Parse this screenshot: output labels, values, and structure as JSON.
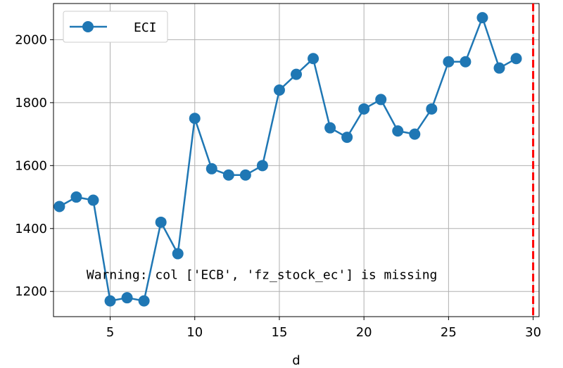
{
  "chart_data": {
    "type": "line",
    "xlabel": "d",
    "ylabel": "",
    "xlim": [
      1.65,
      30.35
    ],
    "ylim": [
      1120,
      2115
    ],
    "x_ticks": [
      5,
      10,
      15,
      20,
      25,
      30
    ],
    "y_ticks": [
      1200,
      1400,
      1600,
      1800,
      2000
    ],
    "grid": true,
    "legend_position": "upper-left",
    "series": [
      {
        "name": "ECI",
        "color": "#1f77b4",
        "marker": "circle",
        "x": [
          2,
          3,
          4,
          5,
          6,
          7,
          8,
          9,
          10,
          11,
          12,
          13,
          14,
          15,
          16,
          17,
          18,
          19,
          20,
          21,
          22,
          23,
          24,
          25,
          26,
          27,
          28,
          29
        ],
        "y": [
          1470,
          1500,
          1490,
          1170,
          1180,
          1170,
          1420,
          1320,
          1750,
          1590,
          1570,
          1570,
          1600,
          1840,
          1890,
          1940,
          1720,
          1690,
          1780,
          1810,
          1710,
          1700,
          1780,
          1930,
          1930,
          2070,
          1910,
          1940
        ]
      }
    ],
    "vline": {
      "x": 30,
      "color": "#ff0000",
      "style": "dashed"
    },
    "annotation": {
      "text": "Warning: col ['ECB', 'fz_stock_ec'] is missing",
      "x": 3.6,
      "y": 1240
    }
  }
}
